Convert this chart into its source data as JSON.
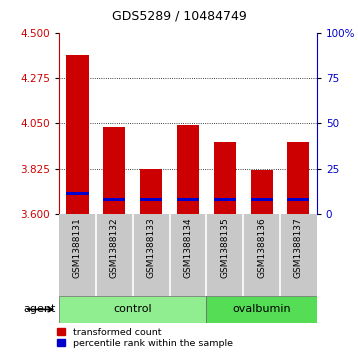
{
  "title": "GDS5289 / 10484749",
  "samples": [
    "GSM1388131",
    "GSM1388132",
    "GSM1388133",
    "GSM1388134",
    "GSM1388135",
    "GSM1388136",
    "GSM1388137"
  ],
  "transformed_counts": [
    4.39,
    4.03,
    3.825,
    4.04,
    3.96,
    3.82,
    3.96
  ],
  "percentile_ranks_val": [
    3.693,
    3.666,
    3.663,
    3.665,
    3.664,
    3.664,
    3.665
  ],
  "blue_bar_height": 0.016,
  "group_control_count": 4,
  "group_ovalbumin_count": 3,
  "agent_label": "agent",
  "ylim_left": [
    3.6,
    4.5
  ],
  "yticks_left": [
    3.6,
    3.825,
    4.05,
    4.275,
    4.5
  ],
  "yticks_right": [
    0,
    25,
    50,
    75,
    100
  ],
  "left_axis_color": "#cc0000",
  "right_axis_color": "#0000cc",
  "bar_color_red": "#cc0000",
  "bar_color_blue": "#0000cc",
  "background_color": "#ffffff",
  "label_bg_color": "#c8c8c8",
  "ctrl_color": "#90ee90",
  "ov_color": "#55dd55",
  "legend_red": "transformed count",
  "legend_blue": "percentile rank within the sample",
  "bar_width": 0.6
}
